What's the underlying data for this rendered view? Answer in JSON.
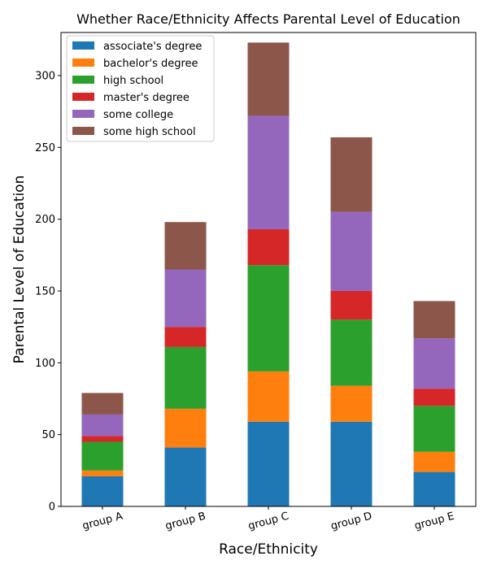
{
  "chart_data": {
    "type": "bar",
    "stacked": true,
    "title": "Whether Race/Ethnicity Affects Parental Level of Education",
    "xlabel": "Race/Ethnicity",
    "ylabel": "Parental Level of Education",
    "categories": [
      "group A",
      "group B",
      "group C",
      "group D",
      "group E"
    ],
    "ylim": [
      0,
      330
    ],
    "yticks": [
      0,
      50,
      100,
      150,
      200,
      250,
      300
    ],
    "legend_position": "top-left",
    "grid": false,
    "series": [
      {
        "name": "associate's degree",
        "color": "#1f77b4",
        "values": [
          21,
          41,
          59,
          59,
          24
        ]
      },
      {
        "name": "bachelor's degree",
        "color": "#ff7f0e",
        "values": [
          4,
          27,
          35,
          25,
          14
        ]
      },
      {
        "name": "high school",
        "color": "#2ca02c",
        "values": [
          20,
          43,
          74,
          46,
          32
        ]
      },
      {
        "name": "master's degree",
        "color": "#d62728",
        "values": [
          4,
          14,
          25,
          20,
          12
        ]
      },
      {
        "name": "some college",
        "color": "#9467bd",
        "values": [
          15,
          40,
          79,
          55,
          35
        ]
      },
      {
        "name": "some high school",
        "color": "#8c564b",
        "values": [
          15,
          33,
          51,
          52,
          26
        ]
      }
    ]
  }
}
